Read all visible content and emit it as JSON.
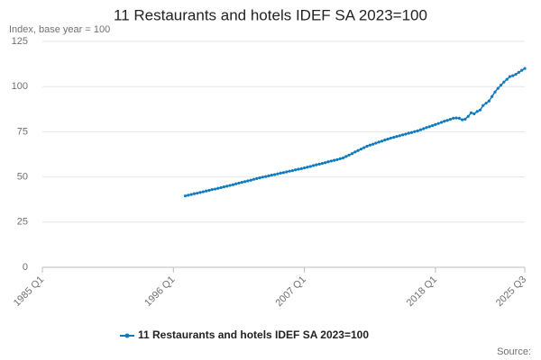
{
  "chart_data": {
    "type": "line",
    "title": "11 Restaurants and hotels IDEF SA 2023=100",
    "y_label": "Index, base year = 100",
    "source": "Source:",
    "categories": [
      "1985 Q1",
      null,
      null,
      null,
      null,
      null,
      null,
      null,
      null,
      null,
      null,
      null,
      null,
      null,
      null,
      null,
      null,
      null,
      null,
      null,
      null,
      null,
      null,
      null,
      null,
      null,
      null,
      null,
      null,
      null,
      null,
      null,
      null,
      null,
      null,
      null,
      null,
      null,
      null,
      null,
      null,
      null,
      null,
      null,
      "1996 Q1",
      null,
      null,
      null,
      null,
      null,
      null,
      null,
      null,
      null,
      null,
      null,
      null,
      null,
      null,
      null,
      null,
      null,
      null,
      null,
      null,
      null,
      null,
      null,
      null,
      null,
      null,
      null,
      null,
      null,
      null,
      null,
      null,
      null,
      null,
      null,
      null,
      null,
      null,
      null,
      null,
      null,
      null,
      null,
      "2007 Q1",
      null,
      null,
      null,
      null,
      null,
      null,
      null,
      null,
      null,
      null,
      null,
      null,
      null,
      null,
      null,
      null,
      null,
      null,
      null,
      null,
      null,
      null,
      null,
      null,
      null,
      null,
      null,
      null,
      null,
      null,
      null,
      null,
      null,
      null,
      null,
      null,
      null,
      null,
      null,
      null,
      null,
      null,
      null,
      "2018 Q1",
      null,
      null,
      null,
      null,
      null,
      null,
      null,
      null,
      null,
      null,
      null,
      null,
      null,
      null,
      null,
      null,
      null,
      null,
      null,
      null,
      null,
      null,
      null,
      null,
      null,
      null,
      null,
      null,
      null,
      "2025 Q3"
    ],
    "series": [
      {
        "name": "11 Restaurants and hotels IDEF SA 2023=100",
        "color": "#0f7bbf",
        "values": [
          null,
          null,
          null,
          null,
          null,
          null,
          null,
          null,
          null,
          null,
          null,
          null,
          null,
          null,
          null,
          null,
          null,
          null,
          null,
          null,
          null,
          null,
          null,
          null,
          null,
          null,
          null,
          null,
          null,
          null,
          null,
          null,
          null,
          null,
          null,
          null,
          null,
          null,
          null,
          null,
          null,
          null,
          null,
          null,
          null,
          null,
          null,
          null,
          39.5,
          39.9,
          40.3,
          40.7,
          41.0,
          41.4,
          41.8,
          42.2,
          42.6,
          43.0,
          43.3,
          43.7,
          44.1,
          44.5,
          44.9,
          45.3,
          45.7,
          46.2,
          46.6,
          47.0,
          47.4,
          47.8,
          48.2,
          48.7,
          49.1,
          49.5,
          49.9,
          50.2,
          50.6,
          51.0,
          51.3,
          51.7,
          52.1,
          52.4,
          52.8,
          53.2,
          53.5,
          53.9,
          54.3,
          54.6,
          55.0,
          55.4,
          55.8,
          56.3,
          56.7,
          57.1,
          57.5,
          57.9,
          58.4,
          58.8,
          59.2,
          59.6,
          60.1,
          60.5,
          61.3,
          62.1,
          62.9,
          63.8,
          64.6,
          65.4,
          66.2,
          67.0,
          67.6,
          68.1,
          68.7,
          69.3,
          69.8,
          70.4,
          70.9,
          71.5,
          71.9,
          72.4,
          72.8,
          73.3,
          73.7,
          74.2,
          74.6,
          75.1,
          75.5,
          76.1,
          76.7,
          77.3,
          77.8,
          78.4,
          79.0,
          79.6,
          80.2,
          80.8,
          81.3,
          81.9,
          82.5,
          82.6,
          82.5,
          81.6,
          82.0,
          83.5,
          85.5,
          84.9,
          86.2,
          87.0,
          89.5,
          90.8,
          92.0,
          94.5,
          97.0,
          99.0,
          100.8,
          102.5,
          104.0,
          105.5,
          106.0,
          106.8,
          107.9,
          109.0,
          110.0
        ]
      }
    ],
    "ylim": [
      0,
      125
    ],
    "yticks": [
      0,
      25,
      50,
      75,
      100,
      125
    ],
    "grid": true
  }
}
